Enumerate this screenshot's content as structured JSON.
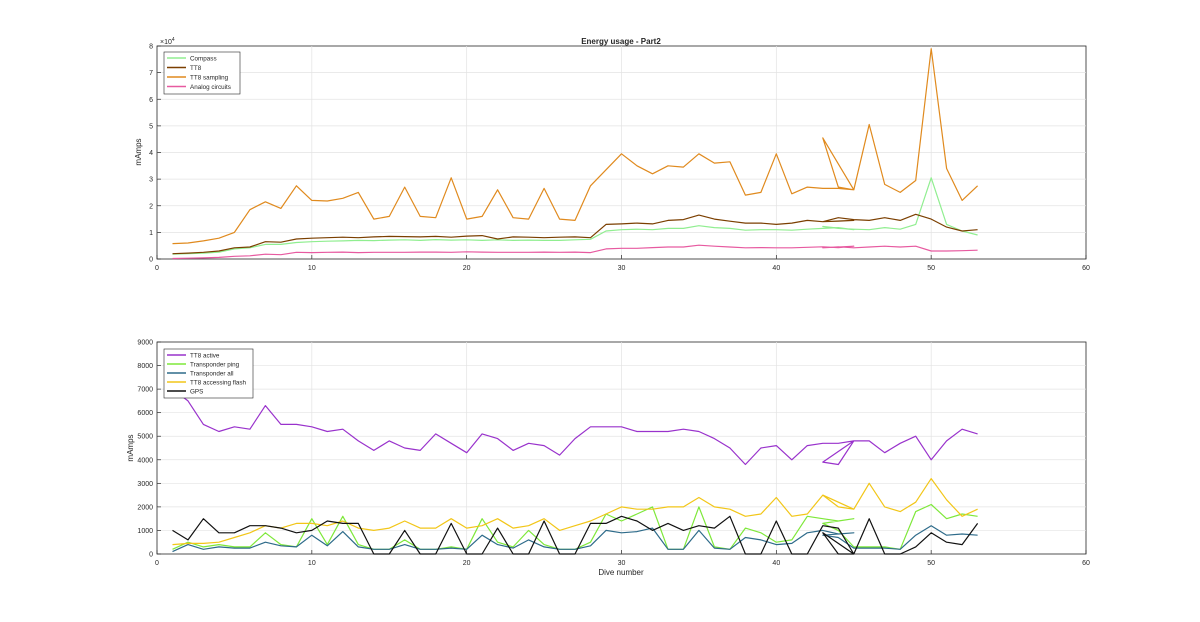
{
  "chart_data": [
    {
      "type": "line",
      "title": "Energy usage - Part2",
      "xlabel": "",
      "ylabel": "mAmps",
      "xlim": [
        0,
        60
      ],
      "ylim": [
        0,
        80000
      ],
      "y_exponent_label": "×10",
      "y_exponent_power": "4",
      "x_ticks": [
        "0",
        "10",
        "20",
        "30",
        "40",
        "50",
        "60"
      ],
      "y_ticks": [
        "0",
        "1",
        "2",
        "3",
        "4",
        "5",
        "6",
        "7",
        "8"
      ],
      "grid": true,
      "legend_position": "top-left",
      "series": [
        {
          "name": "Compass",
          "color": "#90ee90",
          "x": [
            1,
            2,
            3,
            4,
            5,
            6,
            7,
            8,
            9,
            10,
            11,
            12,
            13,
            14,
            15,
            16,
            17,
            18,
            19,
            20,
            21,
            22,
            23,
            24,
            25,
            26,
            27,
            28,
            29,
            30,
            31,
            32,
            33,
            34,
            35,
            36,
            37,
            38,
            39,
            40,
            41,
            42,
            43,
            44,
            45,
            43,
            44,
            45,
            46,
            47,
            48,
            49,
            50,
            51,
            52,
            53
          ],
          "y": [
            1800,
            2000,
            2200,
            2600,
            3800,
            4200,
            5500,
            5500,
            6200,
            6500,
            6700,
            6800,
            7000,
            6900,
            7100,
            7200,
            7000,
            7300,
            7100,
            7200,
            7000,
            7200,
            7000,
            7100,
            7000,
            7000,
            7200,
            7400,
            10500,
            11000,
            11200,
            11000,
            11500,
            11500,
            12500,
            11800,
            11500,
            10800,
            11000,
            11000,
            10800,
            11200,
            11500,
            11800,
            11000,
            12200,
            11500,
            11200,
            11000,
            11800,
            11200,
            13000,
            30500,
            13000,
            10500,
            9000
          ]
        },
        {
          "name": "TT8",
          "color": "#7b3f00",
          "x": [
            1,
            2,
            3,
            4,
            5,
            6,
            7,
            8,
            9,
            10,
            11,
            12,
            13,
            14,
            15,
            16,
            17,
            18,
            19,
            20,
            21,
            22,
            23,
            24,
            25,
            26,
            27,
            28,
            29,
            30,
            31,
            32,
            33,
            34,
            35,
            36,
            37,
            38,
            39,
            40,
            41,
            42,
            43,
            44,
            45,
            43,
            44,
            45,
            46,
            47,
            48,
            49,
            50,
            51,
            52,
            53
          ],
          "y": [
            2000,
            2200,
            2500,
            3000,
            4200,
            4500,
            6500,
            6300,
            7500,
            7800,
            8000,
            8200,
            8000,
            8300,
            8500,
            8400,
            8300,
            8500,
            8200,
            8600,
            8800,
            7500,
            8300,
            8200,
            8000,
            8200,
            8300,
            8000,
            13000,
            13200,
            13500,
            13200,
            14500,
            14800,
            16500,
            15000,
            14200,
            13500,
            13500,
            13000,
            13500,
            14500,
            14000,
            14200,
            14500,
            14000,
            15500,
            14800,
            14500,
            15500,
            14500,
            16800,
            15000,
            12000,
            10500,
            11000
          ]
        },
        {
          "name": "TT8 sampling",
          "color": "#e08a1e",
          "x": [
            1,
            2,
            3,
            4,
            5,
            6,
            7,
            8,
            9,
            10,
            11,
            12,
            13,
            14,
            15,
            16,
            17,
            18,
            19,
            20,
            21,
            22,
            23,
            24,
            25,
            26,
            27,
            28,
            29,
            30,
            31,
            32,
            33,
            34,
            35,
            36,
            37,
            38,
            39,
            40,
            41,
            42,
            43,
            44,
            45,
            43,
            44,
            45,
            46,
            47,
            48,
            49,
            50,
            51,
            52,
            53
          ],
          "y": [
            5800,
            6000,
            6800,
            7800,
            10000,
            18500,
            21500,
            19000,
            27500,
            22000,
            21800,
            22800,
            25000,
            15000,
            16000,
            27000,
            16000,
            15500,
            30500,
            15000,
            16000,
            26000,
            15500,
            15000,
            26500,
            15000,
            14500,
            27500,
            33500,
            39500,
            35000,
            32000,
            35000,
            34500,
            39500,
            36000,
            36500,
            24000,
            25000,
            39500,
            24500,
            27000,
            26500,
            26500,
            26000,
            45500,
            27000,
            26000,
            50500,
            28000,
            25000,
            29500,
            79000,
            34000,
            22000,
            27500
          ]
        },
        {
          "name": "Analog circuits",
          "color": "#e75aa0",
          "x": [
            1,
            2,
            3,
            4,
            5,
            6,
            7,
            8,
            9,
            10,
            11,
            12,
            13,
            14,
            15,
            16,
            17,
            18,
            19,
            20,
            21,
            22,
            23,
            24,
            25,
            26,
            27,
            28,
            29,
            30,
            31,
            32,
            33,
            34,
            35,
            36,
            37,
            38,
            39,
            40,
            41,
            42,
            43,
            44,
            45,
            43,
            44,
            45,
            46,
            47,
            48,
            49,
            50,
            51,
            52,
            53
          ],
          "y": [
            200,
            300,
            400,
            600,
            1000,
            1200,
            1800,
            1600,
            2500,
            2400,
            2500,
            2600,
            2400,
            2500,
            2500,
            2500,
            2600,
            2600,
            2500,
            2700,
            2600,
            2500,
            2500,
            2500,
            2600,
            2500,
            2600,
            2400,
            3800,
            4000,
            4000,
            4300,
            4500,
            4500,
            5200,
            4800,
            4500,
            4200,
            4300,
            4200,
            4200,
            4400,
            4600,
            4300,
            4800,
            4200,
            4600,
            4200,
            4500,
            4800,
            4500,
            4800,
            3000,
            3000,
            3100,
            3300
          ]
        }
      ]
    },
    {
      "type": "line",
      "title": "",
      "xlabel": "Dive number",
      "ylabel": "mAmps",
      "xlim": [
        0,
        60
      ],
      "ylim": [
        0,
        9000
      ],
      "x_ticks": [
        "0",
        "10",
        "20",
        "30",
        "40",
        "50",
        "60"
      ],
      "y_ticks": [
        "0",
        "1000",
        "2000",
        "3000",
        "4000",
        "5000",
        "6000",
        "7000",
        "8000",
        "9000"
      ],
      "grid": true,
      "legend_position": "top-left",
      "series": [
        {
          "name": "TT8 active",
          "color": "#9932cc",
          "x": [
            1,
            2,
            3,
            4,
            5,
            6,
            7,
            8,
            9,
            10,
            11,
            12,
            13,
            14,
            15,
            16,
            17,
            18,
            19,
            20,
            21,
            22,
            23,
            24,
            25,
            26,
            27,
            28,
            29,
            30,
            31,
            32,
            33,
            34,
            35,
            36,
            37,
            38,
            39,
            40,
            41,
            42,
            43,
            44,
            45,
            43,
            44,
            45,
            46,
            47,
            48,
            49,
            50,
            51,
            52,
            53
          ],
          "y": [
            7000,
            6500,
            5500,
            5200,
            5400,
            5300,
            6300,
            5500,
            5500,
            5400,
            5200,
            5300,
            4800,
            4400,
            4800,
            4500,
            4400,
            5100,
            4700,
            4300,
            5100,
            4900,
            4400,
            4700,
            4600,
            4200,
            4900,
            5400,
            5400,
            5400,
            5200,
            5200,
            5200,
            5300,
            5200,
            4900,
            4500,
            3800,
            4500,
            4600,
            4000,
            4600,
            4700,
            4700,
            4800,
            3900,
            3800,
            4800,
            4800,
            4300,
            4700,
            5000,
            4000,
            4800,
            5300,
            5100
          ]
        },
        {
          "name": "Transponder ping",
          "color": "#7ee83a",
          "x": [
            1,
            2,
            3,
            4,
            5,
            6,
            7,
            8,
            9,
            10,
            11,
            12,
            13,
            14,
            15,
            16,
            17,
            18,
            19,
            20,
            21,
            22,
            23,
            24,
            25,
            26,
            27,
            28,
            29,
            30,
            31,
            32,
            33,
            34,
            35,
            36,
            37,
            38,
            39,
            40,
            41,
            42,
            43,
            44,
            45,
            43,
            44,
            45,
            46,
            47,
            48,
            49,
            50,
            51,
            52,
            53
          ],
          "y": [
            200,
            500,
            300,
            400,
            300,
            300,
            900,
            400,
            300,
            1500,
            400,
            1600,
            400,
            200,
            200,
            600,
            200,
            200,
            300,
            200,
            1500,
            500,
            300,
            1000,
            400,
            200,
            200,
            500,
            1700,
            1400,
            1700,
            2000,
            200,
            200,
            2000,
            300,
            200,
            1100,
            900,
            500,
            600,
            1600,
            1500,
            1400,
            1500,
            1300,
            1000,
            300,
            300,
            300,
            200,
            1800,
            2100,
            1500,
            1700,
            1600
          ]
        },
        {
          "name": "Transponder all",
          "color": "#2e6b8a",
          "x": [
            1,
            2,
            3,
            4,
            5,
            6,
            7,
            8,
            9,
            10,
            11,
            12,
            13,
            14,
            15,
            16,
            17,
            18,
            19,
            20,
            21,
            22,
            23,
            24,
            25,
            26,
            27,
            28,
            29,
            30,
            31,
            32,
            33,
            34,
            35,
            36,
            37,
            38,
            39,
            40,
            41,
            42,
            43,
            44,
            45,
            43,
            44,
            45,
            46,
            47,
            48,
            49,
            50,
            51,
            52,
            53
          ],
          "y": [
            100,
            400,
            200,
            300,
            250,
            250,
            500,
            350,
            300,
            800,
            350,
            950,
            300,
            200,
            200,
            400,
            200,
            200,
            250,
            200,
            800,
            400,
            250,
            600,
            300,
            200,
            200,
            350,
            1000,
            900,
            950,
            1100,
            200,
            200,
            1000,
            250,
            200,
            700,
            600,
            400,
            450,
            900,
            1000,
            850,
            900,
            800,
            700,
            250,
            250,
            250,
            200,
            800,
            1200,
            800,
            850,
            800
          ]
        },
        {
          "name": "TT8 accessing flash",
          "color": "#f2c618",
          "x": [
            1,
            2,
            3,
            4,
            5,
            6,
            7,
            8,
            9,
            10,
            11,
            12,
            13,
            14,
            15,
            16,
            17,
            18,
            19,
            20,
            21,
            22,
            23,
            24,
            25,
            26,
            27,
            28,
            29,
            30,
            31,
            32,
            33,
            34,
            35,
            36,
            37,
            38,
            39,
            40,
            41,
            42,
            43,
            44,
            45,
            43,
            44,
            45,
            46,
            47,
            48,
            49,
            50,
            51,
            52,
            53
          ],
          "y": [
            400,
            450,
            450,
            500,
            700,
            900,
            1200,
            1100,
            1300,
            1300,
            1200,
            1400,
            1100,
            1000,
            1100,
            1400,
            1100,
            1100,
            1500,
            1100,
            1200,
            1500,
            1100,
            1200,
            1500,
            1000,
            1200,
            1400,
            1700,
            2000,
            1900,
            1900,
            2000,
            2000,
            2400,
            2000,
            1900,
            1600,
            1700,
            2400,
            1600,
            1700,
            2500,
            2000,
            1900,
            2500,
            2200,
            1900,
            3000,
            2000,
            1800,
            2200,
            3200,
            2300,
            1600,
            1900
          ]
        },
        {
          "name": "GPS",
          "color": "#111111",
          "x": [
            1,
            2,
            3,
            4,
            5,
            6,
            7,
            8,
            9,
            10,
            11,
            12,
            13,
            14,
            15,
            16,
            17,
            18,
            19,
            20,
            21,
            22,
            23,
            24,
            25,
            26,
            27,
            28,
            29,
            30,
            31,
            32,
            33,
            34,
            35,
            36,
            37,
            38,
            39,
            40,
            41,
            42,
            43,
            44,
            45,
            43,
            44,
            45,
            46,
            47,
            48,
            49,
            50,
            51,
            52,
            53
          ],
          "y": [
            1000,
            600,
            1500,
            900,
            900,
            1200,
            1200,
            1100,
            900,
            1000,
            1400,
            1300,
            1300,
            0,
            0,
            1000,
            0,
            0,
            1300,
            0,
            0,
            1100,
            0,
            0,
            1400,
            0,
            0,
            1300,
            1300,
            1600,
            1400,
            1000,
            1300,
            1000,
            1200,
            1100,
            1600,
            0,
            0,
            1400,
            0,
            0,
            1200,
            1100,
            0,
            900,
            0,
            0,
            1500,
            0,
            0,
            300,
            900,
            500,
            400,
            1300
          ]
        }
      ]
    }
  ]
}
